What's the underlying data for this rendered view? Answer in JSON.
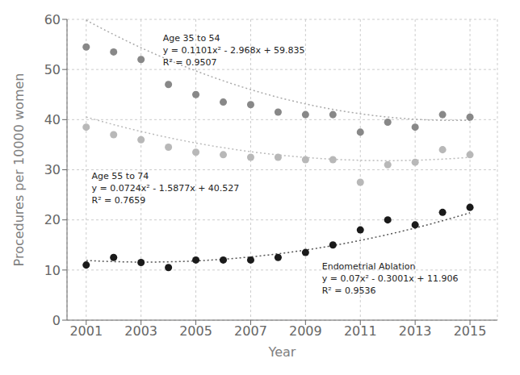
{
  "chart_data": {
    "type": "scatter",
    "xlabel": "Year",
    "ylabel": "Procedures per 10000 women",
    "x": [
      2001,
      2002,
      2003,
      2004,
      2005,
      2006,
      2007,
      2008,
      2009,
      2010,
      2011,
      2012,
      2013,
      2014,
      2015
    ],
    "series": [
      {
        "color": "#888888",
        "values": [
          54.5,
          53.5,
          52.0,
          47.0,
          45.0,
          43.5,
          43.0,
          41.5,
          41.0,
          41.0,
          37.5,
          39.5,
          38.5,
          41.0,
          40.5
        ],
        "trend": [
          0.1101,
          -2.968,
          59.835
        ]
      },
      {
        "color": "#b8b8b8",
        "values": [
          38.5,
          37.0,
          36.0,
          34.5,
          33.5,
          33.0,
          32.5,
          32.5,
          32.0,
          32.0,
          27.5,
          31.0,
          31.5,
          34.0,
          33.0
        ],
        "trend": [
          0.0724,
          -1.5877,
          40.527
        ]
      },
      {
        "color": "#1a1a1a",
        "values": [
          11.0,
          12.5,
          11.5,
          10.5,
          12.0,
          12.0,
          12.0,
          12.5,
          13.5,
          15.0,
          18.0,
          20.0,
          19.0,
          21.5,
          22.5
        ],
        "trend": [
          0.07,
          -0.3001,
          11.906
        ]
      }
    ],
    "annotations": [
      "Age 35 to 54\ny = 0.1101x² - 2.968x + 59.835\nR² = 0.9507",
      "Age 55 to 74\ny = 0.0724x² - 1.5877x + 40.527\nR² = 0.7659",
      "Endometrial Ablation\ny = 0.07x² - 0.3001x + 11.906\nR² = 0.9536"
    ],
    "xlim": [
      2000.3,
      2016.0
    ],
    "ylim": [
      0,
      60
    ],
    "xticks": [
      2001,
      2003,
      2005,
      2007,
      2009,
      2011,
      2013,
      2015
    ],
    "yticks": [
      0,
      10,
      20,
      30,
      40,
      50,
      60
    ],
    "grid": true
  }
}
